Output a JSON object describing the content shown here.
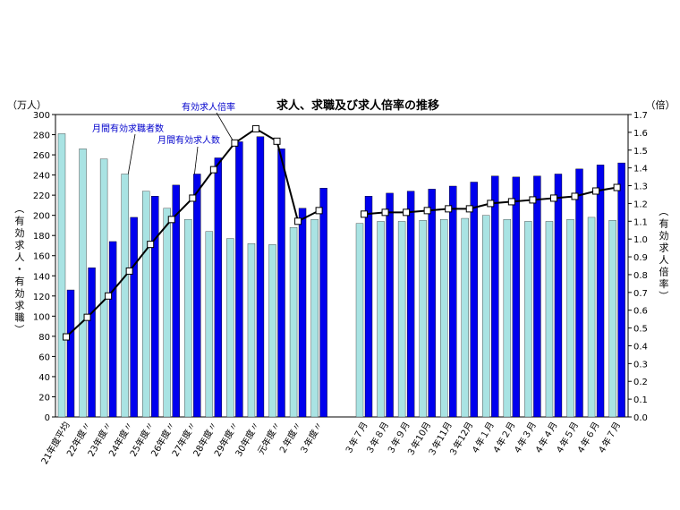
{
  "chart_data": {
    "type": "bar",
    "title": "求人、求職及び求人倍率の推移",
    "left_unit": "（万人）",
    "right_unit": "（倍）",
    "left_axis_label": "（有効求人・有効求職）",
    "right_axis_label": "（有効求人倍率）",
    "ylim_left": [
      0,
      300
    ],
    "ylim_right": [
      0,
      1.7
    ],
    "yticks_left": [
      "0",
      "20",
      "40",
      "60",
      "80",
      "100",
      "120",
      "140",
      "160",
      "180",
      "200",
      "220",
      "240",
      "260",
      "280",
      "300"
    ],
    "yticks_right": [
      "0.0",
      "0.1",
      "0.2",
      "0.3",
      "0.4",
      "0.5",
      "0.6",
      "0.7",
      "0.8",
      "0.9",
      "1.0",
      "1.1",
      "1.2",
      "1.3",
      "1.4",
      "1.5",
      "1.6",
      "1.7"
    ],
    "groups": [
      {
        "categories": [
          "21年度平均",
          "22年度〃",
          "23年度〃",
          "24年度〃",
          "25年度〃",
          "26年度〃",
          "27年度〃",
          "28年度〃",
          "29年度〃",
          "30年度〃",
          "元年度〃",
          "２年度〃",
          "３年度〃"
        ],
        "seekers": [
          281,
          266,
          256,
          241,
          224,
          207,
          196,
          184,
          177,
          172,
          171,
          188,
          196
        ],
        "openings": [
          126,
          148,
          174,
          198,
          219,
          230,
          241,
          257,
          273,
          278,
          266,
          207,
          227
        ],
        "ratio": [
          0.45,
          0.56,
          0.68,
          0.82,
          0.97,
          1.11,
          1.23,
          1.39,
          1.54,
          1.62,
          1.55,
          1.1,
          1.16
        ]
      },
      {
        "categories": [
          "３年７月",
          "３年８月",
          "３年９月",
          "３年10月",
          "３年11月",
          "３年12月",
          "４年１月",
          "４年２月",
          "４年３月",
          "４年４月",
          "４年５月",
          "４年６月",
          "４年７月"
        ],
        "seekers": [
          192,
          194,
          194,
          195,
          196,
          197,
          200,
          196,
          194,
          194,
          196,
          198,
          195
        ],
        "openings": [
          219,
          222,
          224,
          226,
          229,
          233,
          239,
          238,
          239,
          241,
          246,
          250,
          252
        ],
        "ratio": [
          1.14,
          1.15,
          1.15,
          1.16,
          1.17,
          1.17,
          1.2,
          1.21,
          1.22,
          1.23,
          1.24,
          1.27,
          1.29
        ]
      }
    ],
    "series": [
      {
        "name": "月間有効求職者数",
        "color": "#a9e3e3"
      },
      {
        "name": "月間有効求人数",
        "color": "#0000ee"
      },
      {
        "name": "有効求人倍率",
        "color": "#000000"
      }
    ]
  }
}
